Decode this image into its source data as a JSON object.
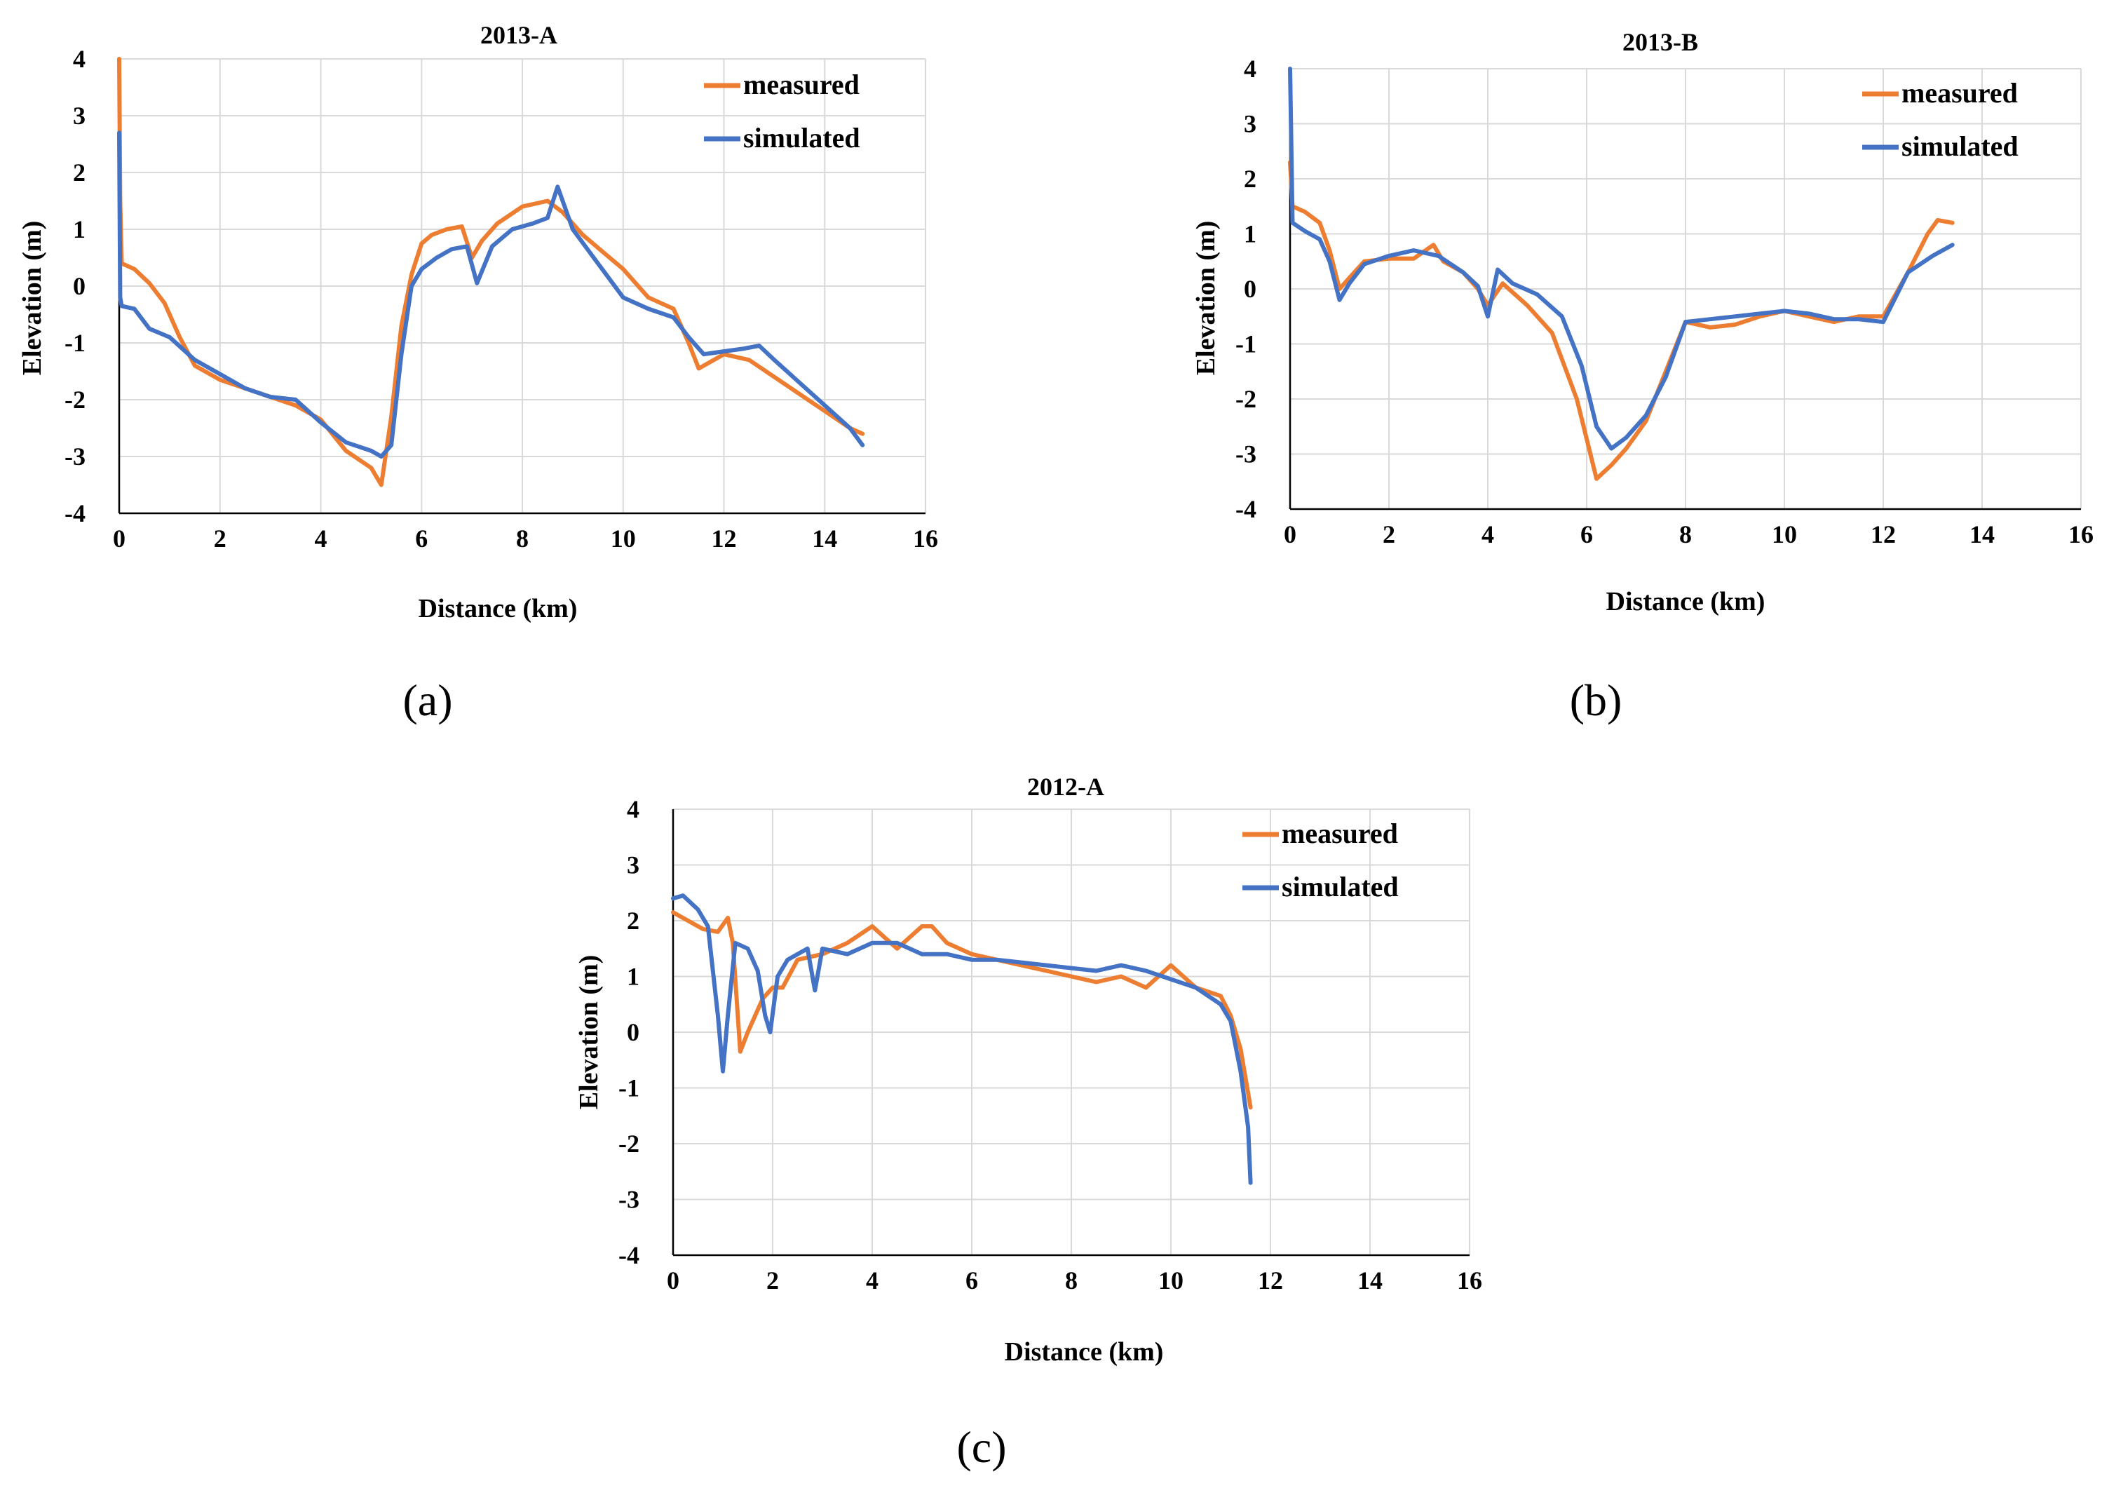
{
  "colors": {
    "measured": "#ED7D31",
    "simulated": "#4472C4"
  },
  "chart_data": [
    {
      "type": "line",
      "id": "a",
      "title": "2013-A",
      "panel_label": "(a)",
      "xlabel": "Distance (km)",
      "ylabel": "Elevation (m)",
      "xlim": [
        0,
        16
      ],
      "ylim": [
        -4,
        4
      ],
      "xticks": [
        "0",
        "2",
        "4",
        "6",
        "8",
        "10",
        "12",
        "14",
        "16"
      ],
      "yticks": [
        "4",
        "3",
        "2",
        "1",
        "0",
        "-1",
        "-2",
        "-3",
        "-4"
      ],
      "legend": [
        "measured",
        "simulated"
      ],
      "series": [
        {
          "name": "measured",
          "color": "#ED7D31",
          "x": [
            0,
            0.02,
            0.05,
            0.3,
            0.6,
            0.9,
            1.2,
            1.5,
            2,
            2.5,
            3,
            3.5,
            4,
            4.5,
            5,
            5.2,
            5.4,
            5.6,
            5.8,
            6,
            6.2,
            6.5,
            6.8,
            7,
            7.2,
            7.5,
            8,
            8.5,
            8.8,
            9.2,
            9.6,
            10,
            10.5,
            11,
            11.3,
            11.5,
            12,
            12.5,
            13,
            13.5,
            14,
            14.5,
            14.75
          ],
          "values": [
            4,
            1.5,
            0.4,
            0.3,
            0.05,
            -0.3,
            -0.9,
            -1.4,
            -1.65,
            -1.8,
            -1.95,
            -2.1,
            -2.35,
            -2.9,
            -3.2,
            -3.5,
            -2.3,
            -0.7,
            0.2,
            0.75,
            0.9,
            1.0,
            1.05,
            0.5,
            0.8,
            1.1,
            1.4,
            1.5,
            1.3,
            0.9,
            0.6,
            0.3,
            -0.2,
            -0.4,
            -1.0,
            -1.45,
            -1.2,
            -1.3,
            -1.6,
            -1.9,
            -2.2,
            -2.5,
            -2.6
          ]
        },
        {
          "name": "simulated",
          "color": "#4472C4",
          "x": [
            0,
            0.02,
            0.05,
            0.3,
            0.6,
            1,
            1.5,
            2,
            2.5,
            3,
            3.5,
            4,
            4.5,
            5,
            5.2,
            5.4,
            5.6,
            5.8,
            6,
            6.3,
            6.6,
            6.9,
            7.1,
            7.4,
            7.8,
            8.2,
            8.5,
            8.7,
            9,
            9.5,
            10,
            10.5,
            11,
            11.3,
            11.6,
            12,
            12.4,
            12.7,
            13,
            13.5,
            14,
            14.5,
            14.75
          ],
          "values": [
            2.7,
            -0.2,
            -0.35,
            -0.4,
            -0.75,
            -0.9,
            -1.3,
            -1.55,
            -1.8,
            -1.95,
            -2.0,
            -2.4,
            -2.75,
            -2.9,
            -3.0,
            -2.8,
            -1.2,
            0.0,
            0.3,
            0.5,
            0.65,
            0.7,
            0.05,
            0.7,
            1.0,
            1.1,
            1.2,
            1.75,
            1.0,
            0.4,
            -0.2,
            -0.4,
            -0.55,
            -0.9,
            -1.2,
            -1.15,
            -1.1,
            -1.05,
            -1.3,
            -1.7,
            -2.1,
            -2.5,
            -2.8
          ]
        }
      ]
    },
    {
      "type": "line",
      "id": "b",
      "title": "2013-B",
      "panel_label": "(b)",
      "xlabel": "Distance (km)",
      "ylabel": "Elevation (m)",
      "xlim": [
        0,
        16
      ],
      "ylim": [
        -4,
        4
      ],
      "xticks": [
        "0",
        "2",
        "4",
        "6",
        "8",
        "10",
        "12",
        "14",
        "16"
      ],
      "yticks": [
        "4",
        "3",
        "2",
        "1",
        "0",
        "-1",
        "-2",
        "-3",
        "-4"
      ],
      "legend": [
        "measured",
        "simulated"
      ],
      "series": [
        {
          "name": "measured",
          "color": "#ED7D31",
          "x": [
            0,
            0.05,
            0.3,
            0.6,
            0.8,
            1.0,
            1.2,
            1.5,
            2,
            2.5,
            2.9,
            3.1,
            3.5,
            3.8,
            4.0,
            4.3,
            4.8,
            5.3,
            5.8,
            6.2,
            6.5,
            6.8,
            7.2,
            7.6,
            8,
            8.5,
            9,
            9.5,
            10,
            10.5,
            11,
            11.5,
            12,
            12.5,
            12.9,
            13.1,
            13.4
          ],
          "values": [
            2.3,
            1.5,
            1.4,
            1.2,
            0.7,
            0.0,
            0.2,
            0.5,
            0.55,
            0.55,
            0.8,
            0.5,
            0.3,
            0.0,
            -0.3,
            0.1,
            -0.3,
            -0.8,
            -2.0,
            -3.45,
            -3.2,
            -2.9,
            -2.4,
            -1.5,
            -0.6,
            -0.7,
            -0.65,
            -0.5,
            -0.4,
            -0.5,
            -0.6,
            -0.5,
            -0.5,
            0.3,
            1.0,
            1.25,
            1.2
          ]
        },
        {
          "name": "simulated",
          "color": "#4472C4",
          "x": [
            0,
            0.05,
            0.3,
            0.6,
            0.8,
            1.0,
            1.2,
            1.5,
            2,
            2.5,
            3,
            3.5,
            3.8,
            4.0,
            4.2,
            4.5,
            5,
            5.5,
            5.9,
            6.2,
            6.5,
            6.8,
            7.2,
            7.6,
            8,
            8.5,
            9,
            9.5,
            10,
            10.5,
            11,
            11.5,
            12,
            12.5,
            13,
            13.4
          ],
          "values": [
            4.0,
            1.2,
            1.05,
            0.9,
            0.5,
            -0.2,
            0.1,
            0.45,
            0.6,
            0.7,
            0.6,
            0.3,
            0.05,
            -0.5,
            0.35,
            0.1,
            -0.1,
            -0.5,
            -1.4,
            -2.5,
            -2.9,
            -2.7,
            -2.3,
            -1.6,
            -0.6,
            -0.55,
            -0.5,
            -0.45,
            -0.4,
            -0.45,
            -0.55,
            -0.55,
            -0.6,
            0.3,
            0.6,
            0.8
          ]
        }
      ]
    },
    {
      "type": "line",
      "id": "c",
      "title": "2012-A",
      "panel_label": "(c)",
      "xlabel": "Distance (km)",
      "ylabel": "Elevation (m)",
      "xlim": [
        0,
        16
      ],
      "ylim": [
        -4,
        4
      ],
      "xticks": [
        "0",
        "2",
        "4",
        "6",
        "8",
        "10",
        "12",
        "14",
        "16"
      ],
      "yticks": [
        "4",
        "3",
        "2",
        "1",
        "0",
        "-1",
        "-2",
        "-3",
        "-4"
      ],
      "legend": [
        "measured",
        "simulated"
      ],
      "series": [
        {
          "name": "measured",
          "color": "#ED7D31",
          "x": [
            0,
            0.3,
            0.6,
            0.9,
            1.1,
            1.2,
            1.35,
            1.5,
            1.8,
            2.0,
            2.2,
            2.5,
            3,
            3.5,
            4,
            4.5,
            5,
            5.2,
            5.5,
            6,
            6.5,
            7,
            7.5,
            8,
            8.5,
            9,
            9.5,
            10,
            10.5,
            11,
            11.2,
            11.4,
            11.6
          ],
          "values": [
            2.15,
            2.0,
            1.85,
            1.8,
            2.05,
            1.6,
            -0.35,
            0.0,
            0.6,
            0.8,
            0.8,
            1.3,
            1.4,
            1.6,
            1.9,
            1.5,
            1.9,
            1.9,
            1.6,
            1.4,
            1.3,
            1.2,
            1.1,
            1.0,
            0.9,
            1.0,
            0.8,
            1.2,
            0.8,
            0.65,
            0.3,
            -0.3,
            -1.35
          ]
        },
        {
          "name": "simulated",
          "color": "#4472C4",
          "x": [
            0,
            0.2,
            0.5,
            0.7,
            0.9,
            1.0,
            1.1,
            1.25,
            1.5,
            1.7,
            1.85,
            1.95,
            2.1,
            2.3,
            2.5,
            2.7,
            2.85,
            3.0,
            3.5,
            4,
            4.5,
            5,
            5.5,
            6,
            6.5,
            7,
            7.5,
            8,
            8.5,
            9,
            9.5,
            10,
            10.5,
            11,
            11.2,
            11.4,
            11.55,
            11.6
          ],
          "values": [
            2.4,
            2.45,
            2.2,
            1.9,
            0.3,
            -0.7,
            0.3,
            1.6,
            1.5,
            1.1,
            0.3,
            0.0,
            1.0,
            1.3,
            1.4,
            1.5,
            0.75,
            1.5,
            1.4,
            1.6,
            1.6,
            1.4,
            1.4,
            1.3,
            1.3,
            1.25,
            1.2,
            1.15,
            1.1,
            1.2,
            1.1,
            0.95,
            0.8,
            0.5,
            0.2,
            -0.7,
            -1.7,
            -2.7
          ]
        }
      ]
    }
  ]
}
